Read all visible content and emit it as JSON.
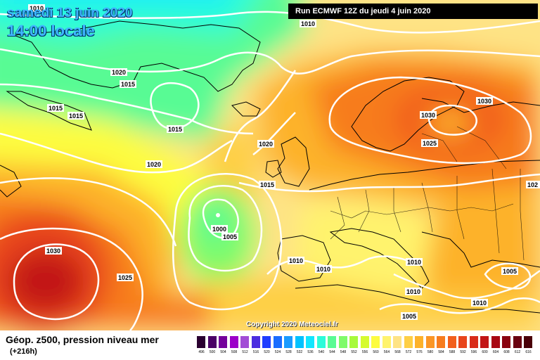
{
  "header": {
    "date": "samedi 13 juin 2020",
    "time": "14:00 locale",
    "run": "Run ECMWF 12Z du jeudi 4 juin 2020"
  },
  "copyright": "Copyright 2020 Meteociel.fr",
  "legend": {
    "title": "Géop. z500, pression niveau mer",
    "subtitle": "(+216h)",
    "scale_values": [
      "496",
      "500",
      "504",
      "508",
      "512",
      "516",
      "520",
      "524",
      "528",
      "532",
      "536",
      "540",
      "544",
      "548",
      "552",
      "556",
      "560",
      "564",
      "568",
      "572",
      "576",
      "580",
      "584",
      "588",
      "592",
      "596",
      "600",
      "604",
      "608",
      "612",
      "616"
    ],
    "scale_colors": [
      "#2a0030",
      "#4b0066",
      "#74009b",
      "#9c00c9",
      "#a24dd6",
      "#4b2de0",
      "#1f3cff",
      "#1a6dff",
      "#1a9bff",
      "#00c2ff",
      "#12e6ff",
      "#2bfcda",
      "#59fb94",
      "#7ffb6a",
      "#a7fa3c",
      "#d6fb2f",
      "#fdfc40",
      "#fff36d",
      "#fee385",
      "#fecf45",
      "#fdb22a",
      "#fb9625",
      "#f77c1e",
      "#f25f1c",
      "#e8451b",
      "#d92c1a",
      "#c21516",
      "#a80712",
      "#8a0310",
      "#6a0210",
      "#4a0008"
    ]
  },
  "isobar_labels": [
    "1010",
    "1010",
    "1020",
    "1015",
    "1015",
    "1015",
    "1015",
    "1020",
    "1020",
    "1015",
    "1000",
    "1005",
    "1030",
    "1025",
    "1030",
    "1030",
    "1025",
    "1010",
    "1010",
    "1010",
    "1010",
    "1005",
    "1005",
    "1010",
    "102"
  ],
  "colors": {
    "header_text": "#3fb6ff",
    "run_box": "#000000",
    "isobar": "#ffffff",
    "coastline": "#000000"
  }
}
